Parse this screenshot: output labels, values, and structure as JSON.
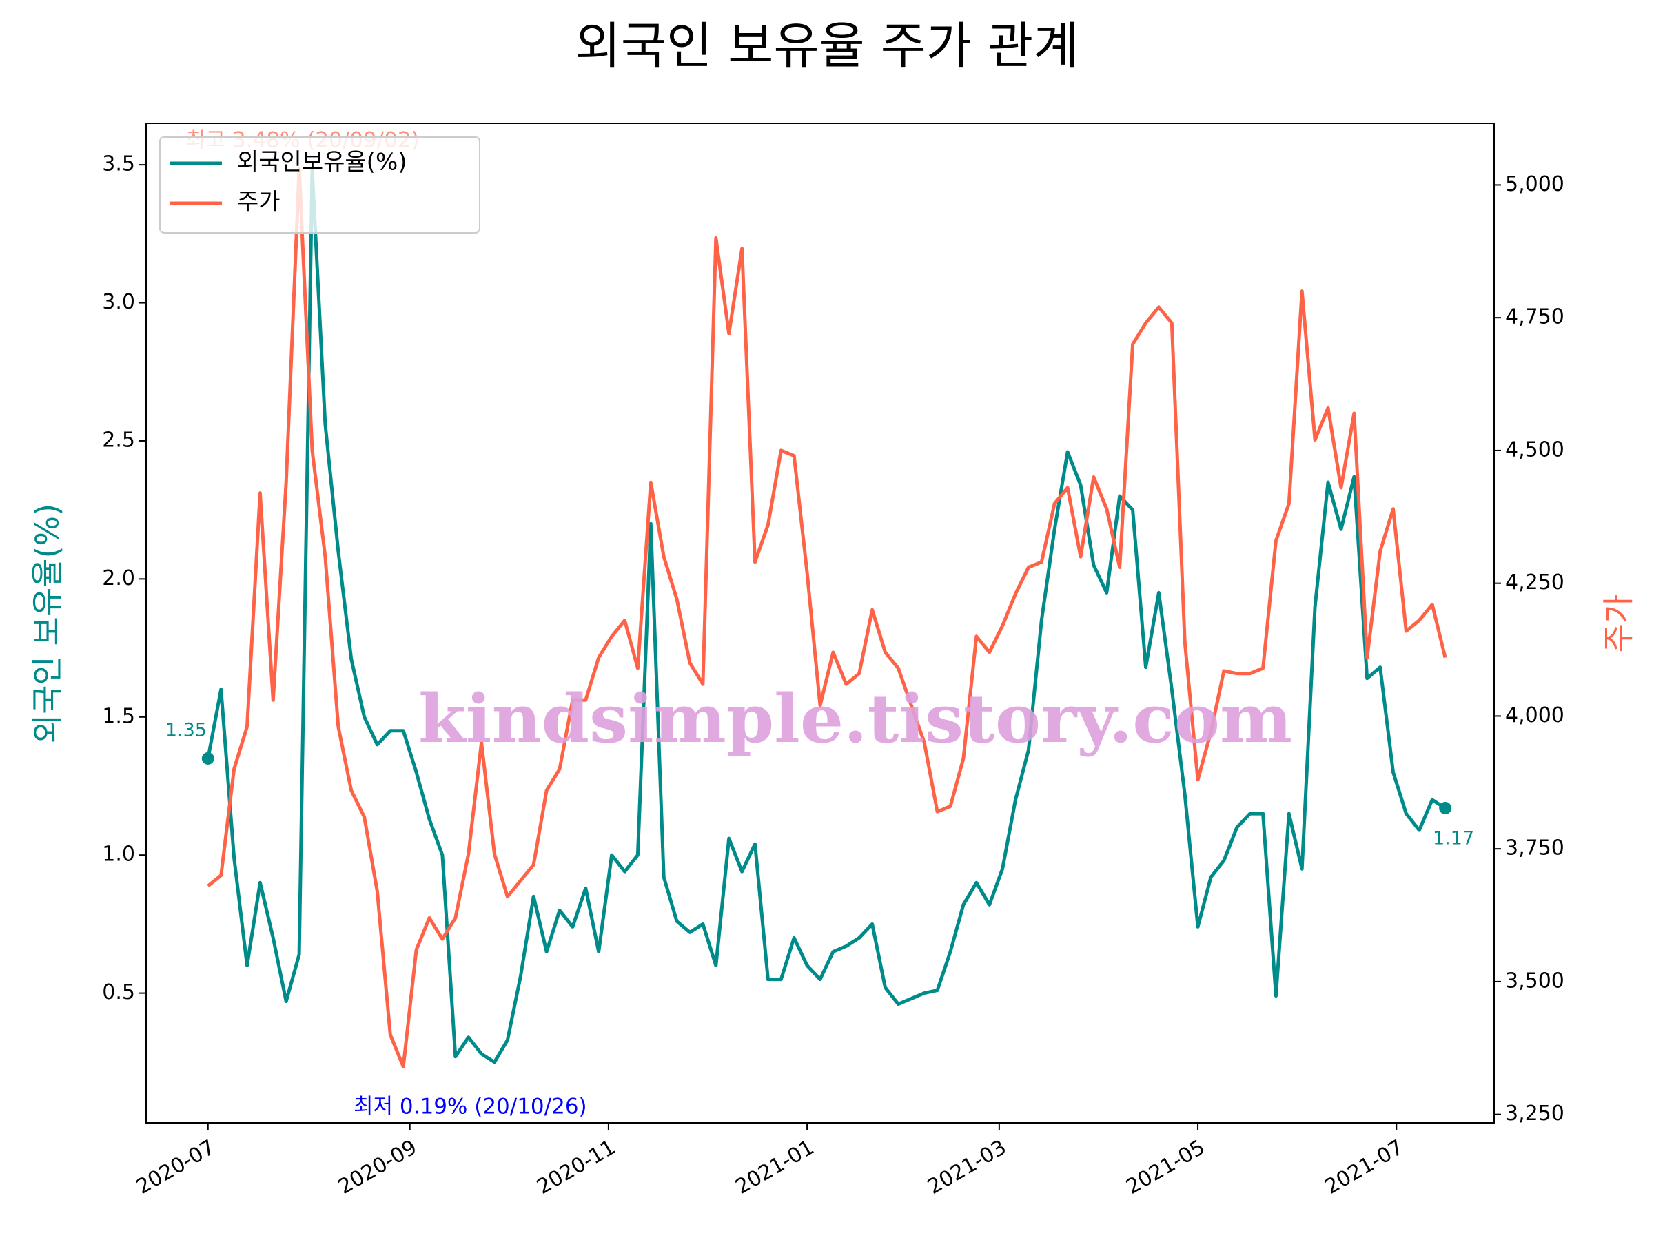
{
  "chart_data": {
    "type": "line",
    "title": "외국인 보유율 주가 관계",
    "ylabel": "외국인 보유율(%)",
    "y2label": "주가",
    "watermark": "kindsimple.tistory.com",
    "annotations": [
      "최고 3.48% (20/09/02)",
      "최저 0.19% (20/10/26)",
      "1.35",
      "1.17"
    ],
    "legend": "upper left",
    "xlim": [
      "2020-06-12",
      "2021-07-31"
    ],
    "xticks": [
      {
        "value": "2020-07-01",
        "label": "2020-07"
      },
      {
        "value": "2020-09-01",
        "label": "2020-09"
      },
      {
        "value": "2020-11-01",
        "label": "2020-11"
      },
      {
        "value": "2021-01-01",
        "label": "2021-01"
      },
      {
        "value": "2021-03-01",
        "label": "2021-03"
      },
      {
        "value": "2021-05-01",
        "label": "2021-05"
      },
      {
        "value": "2021-07-01",
        "label": "2021-07"
      }
    ],
    "ylim": [
      0.03,
      3.65
    ],
    "yticks": [
      0.5,
      {
        "value": 1,
        "label": "1.0"
      },
      1.5,
      {
        "value": 2,
        "label": "2.0"
      },
      2.5,
      {
        "value": 3,
        "label": "3.0"
      },
      3.5
    ],
    "y2lim": [
      3234,
      5116
    ],
    "y2ticks": [
      {
        "value": 3250,
        "label": "3,250"
      },
      {
        "value": 3500,
        "label": "3,500"
      },
      {
        "value": 3750,
        "label": "3,750"
      },
      {
        "value": 4000,
        "label": "4,000"
      },
      {
        "value": 4250,
        "label": "4,250"
      },
      {
        "value": 4500,
        "label": "4,500"
      },
      {
        "value": 4750,
        "label": "4,750"
      },
      {
        "value": 5000,
        "label": "5,000"
      }
    ],
    "x": [
      "2020-07-01",
      "2020-07-05",
      "2020-07-09",
      "2020-07-13",
      "2020-07-17",
      "2020-07-21",
      "2020-07-25",
      "2020-07-29",
      "2020-08-02",
      "2020-08-06",
      "2020-08-10",
      "2020-08-14",
      "2020-08-18",
      "2020-08-22",
      "2020-08-26",
      "2020-08-30",
      "2020-09-03",
      "2020-09-07",
      "2020-09-11",
      "2020-09-15",
      "2020-09-19",
      "2020-09-23",
      "2020-09-27",
      "2020-10-01",
      "2020-10-05",
      "2020-10-09",
      "2020-10-13",
      "2020-10-17",
      "2020-10-21",
      "2020-10-25",
      "2020-10-29",
      "2020-11-02",
      "2020-11-06",
      "2020-11-10",
      "2020-11-14",
      "2020-11-18",
      "2020-11-22",
      "2020-11-26",
      "2020-11-30",
      "2020-12-04",
      "2020-12-08",
      "2020-12-12",
      "2020-12-16",
      "2020-12-20",
      "2020-12-24",
      "2020-12-28",
      "2021-01-01",
      "2021-01-05",
      "2021-01-09",
      "2021-01-13",
      "2021-01-17",
      "2021-01-21",
      "2021-01-25",
      "2021-01-29",
      "2021-02-02",
      "2021-02-06",
      "2021-02-10",
      "2021-02-14",
      "2021-02-18",
      "2021-02-22",
      "2021-02-26",
      "2021-03-02",
      "2021-03-06",
      "2021-03-10",
      "2021-03-14",
      "2021-03-18",
      "2021-03-22",
      "2021-03-26",
      "2021-03-30",
      "2021-04-03",
      "2021-04-07",
      "2021-04-11",
      "2021-04-15",
      "2021-04-19",
      "2021-04-23",
      "2021-04-27",
      "2021-05-01",
      "2021-05-05",
      "2021-05-09",
      "2021-05-13",
      "2021-05-17",
      "2021-05-21",
      "2021-05-25",
      "2021-05-29",
      "2021-06-02",
      "2021-06-06",
      "2021-06-10",
      "2021-06-14",
      "2021-06-18",
      "2021-06-22",
      "2021-06-26",
      "2021-06-30",
      "2021-07-04",
      "2021-07-08",
      "2021-07-12",
      "2021-07-16"
    ],
    "series": [
      {
        "name": "외국인보유율(%)",
        "color": "#008b8b",
        "axis": "y",
        "values": [
          1.35,
          1.6,
          0.99,
          0.6,
          0.9,
          0.7,
          0.47,
          0.64,
          3.48,
          2.56,
          2.1,
          1.71,
          1.5,
          1.4,
          1.45,
          1.45,
          1.3,
          1.13,
          1.0,
          0.27,
          0.34,
          0.28,
          0.25,
          0.33,
          0.56,
          0.85,
          0.65,
          0.8,
          0.74,
          0.88,
          0.65,
          1.0,
          0.94,
          1.0,
          2.2,
          0.92,
          0.76,
          0.72,
          0.75,
          0.6,
          1.06,
          0.94,
          1.04,
          0.55,
          0.55,
          0.7,
          0.6,
          0.55,
          0.65,
          0.67,
          0.7,
          0.75,
          0.52,
          0.46,
          0.48,
          0.5,
          0.51,
          0.65,
          0.82,
          0.9,
          0.82,
          0.95,
          1.2,
          1.38,
          1.85,
          2.18,
          2.46,
          2.34,
          2.05,
          1.95,
          2.3,
          2.25,
          1.68,
          1.95,
          1.6,
          1.22,
          0.74,
          0.92,
          0.98,
          1.1,
          1.15,
          1.15,
          0.49,
          1.15,
          0.95,
          1.9,
          2.35,
          2.18,
          2.37,
          1.64,
          1.68,
          1.3,
          1.15,
          1.09,
          1.2,
          1.17
        ]
      },
      {
        "name": "주가",
        "color": "#ff6347",
        "axis": "y2",
        "values": [
          3680,
          3700,
          3900,
          3980,
          4420,
          4030,
          4440,
          5030,
          4500,
          4300,
          3980,
          3860,
          3810,
          3670,
          3400,
          3340,
          3560,
          3620,
          3580,
          3620,
          3740,
          3950,
          3740,
          3660,
          3690,
          3720,
          3860,
          3900,
          4030,
          4030,
          4110,
          4150,
          4180,
          4090,
          4440,
          4300,
          4220,
          4100,
          4060,
          4900,
          4720,
          4880,
          4290,
          4360,
          4500,
          4490,
          4270,
          4020,
          4120,
          4060,
          4080,
          4200,
          4120,
          4090,
          4020,
          3950,
          3820,
          3830,
          3920,
          4150,
          4120,
          4170,
          4230,
          4280,
          4290,
          4400,
          4430,
          4300,
          4450,
          4390,
          4280,
          4700,
          4740,
          4770,
          4740,
          4140,
          3880,
          3970,
          4085,
          4080,
          4080,
          4090,
          4330,
          4400,
          4800,
          4520,
          4580,
          4430,
          4570,
          4110,
          4310,
          4390,
          4160,
          4180,
          4210,
          4110
        ]
      }
    ]
  }
}
